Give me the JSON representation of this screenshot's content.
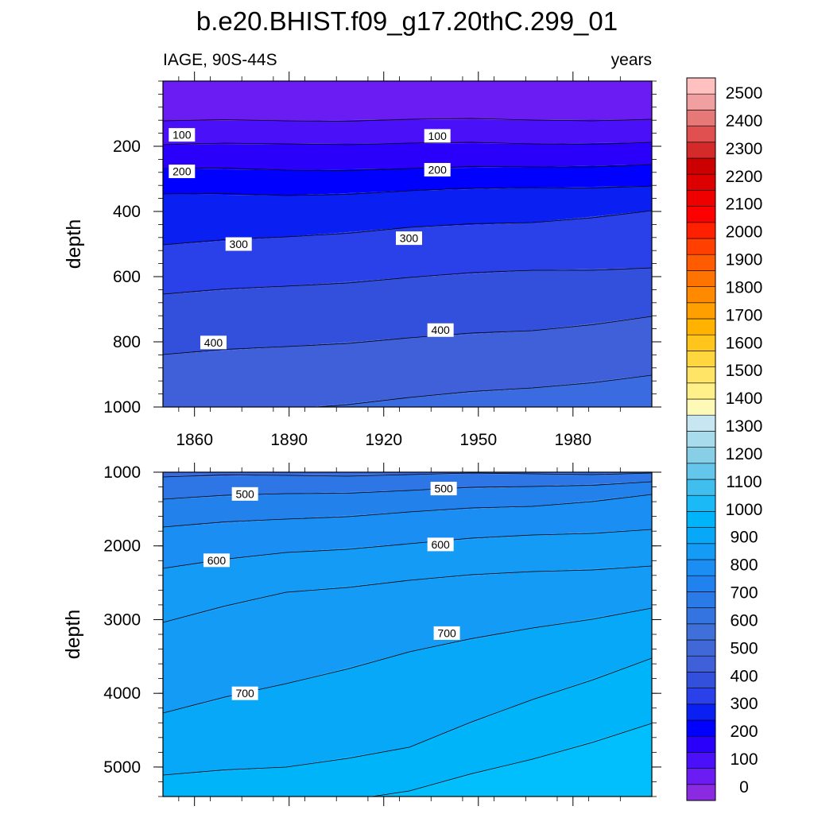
{
  "chart_data": {
    "type": "contour",
    "title": "b.e20.BHIST.f09_g17.20thC.299_01",
    "left_string": "IAGE, 90S-44S",
    "right_string": "years",
    "x_ticks": [
      1860,
      1890,
      1920,
      1950,
      1980
    ],
    "xlim": [
      1850,
      2005
    ],
    "panels": [
      {
        "ylabel": "depth",
        "ylim": [
          0,
          1000
        ],
        "y_ticks": [
          200,
          400,
          600,
          800,
          1000
        ],
        "contour_labels": [
          {
            "text": "100",
            "x": 1856,
            "y": 165
          },
          {
            "text": "100",
            "x": 1937,
            "y": 168
          },
          {
            "text": "200",
            "x": 1856,
            "y": 277
          },
          {
            "text": "200",
            "x": 1937,
            "y": 272
          },
          {
            "text": "300",
            "x": 1874,
            "y": 500
          },
          {
            "text": "300",
            "x": 1928,
            "y": 482
          },
          {
            "text": "400",
            "x": 1866,
            "y": 802
          },
          {
            "text": "400",
            "x": 1938,
            "y": 764
          }
        ]
      },
      {
        "ylabel": "depth",
        "ylim": [
          1000,
          5400
        ],
        "y_ticks": [
          1000,
          2000,
          3000,
          4000,
          5000
        ],
        "contour_labels": [
          {
            "text": "500",
            "x": 1876,
            "y": 1295
          },
          {
            "text": "500",
            "x": 1939,
            "y": 1222
          },
          {
            "text": "600",
            "x": 1867,
            "y": 2195
          },
          {
            "text": "600",
            "x": 1938,
            "y": 1980
          },
          {
            "text": "700",
            "x": 1940,
            "y": 3183
          },
          {
            "text": "700",
            "x": 1876,
            "y": 4000
          }
        ]
      }
    ],
    "colorbar": {
      "labels": [
        "0",
        "100",
        "200",
        "300",
        "400",
        "500",
        "600",
        "700",
        "800",
        "900",
        "1000",
        "1100",
        "1200",
        "1300",
        "1400",
        "1500",
        "1600",
        "1700",
        "1800",
        "1900",
        "2000",
        "2100",
        "2200",
        "2300",
        "2400",
        "2500"
      ],
      "colors": [
        "#8a2be2",
        "#6a1cf2",
        "#4a10f8",
        "#2a00fb",
        "#0000ff",
        "#0a20f2",
        "#2a40e8",
        "#3350dd",
        "#3f60d8",
        "#4068d6",
        "#3f6fd8",
        "#3474e0",
        "#2a7ae8",
        "#1f82ee",
        "#1a8ef3",
        "#139bf6",
        "#08a8f8",
        "#00b4fa",
        "#1bb9f5",
        "#40bfee",
        "#63c6ea",
        "#86cfe6",
        "#a8dbec",
        "#c8e6f2",
        "#fff9b8",
        "#fff08a",
        "#ffe466",
        "#ffd63d",
        "#ffc51a",
        "#ffb300",
        "#ff9f00",
        "#ff8a00",
        "#ff7300",
        "#ff5b00",
        "#ff4000",
        "#ff2000",
        "#ff0000",
        "#ee0000",
        "#dd0000",
        "#cc0000",
        "#d42a2a",
        "#e05050",
        "#e67878",
        "#f0a0a0",
        "#ffc0c0"
      ]
    },
    "fill_colors": {
      "d0_100": "#6a1cf2",
      "d100_150": "#4a10f8",
      "d150_200": "#2a00fb",
      "d200_250": "#0000ff",
      "d250_300": "#0a20f2",
      "d300_350": "#2a40e8",
      "d350_400": "#3350dd",
      "d400_450": "#3f60d8",
      "d450_500": "#3a6be0",
      "d500_550": "#2e76e6",
      "d550_600": "#2381ec",
      "d600_650": "#1a8ef3",
      "d650_700": "#139bf6",
      "d700_750": "#08a8f8",
      "d750_800": "#00b4fa",
      "d800_850": "#00bffc"
    }
  }
}
